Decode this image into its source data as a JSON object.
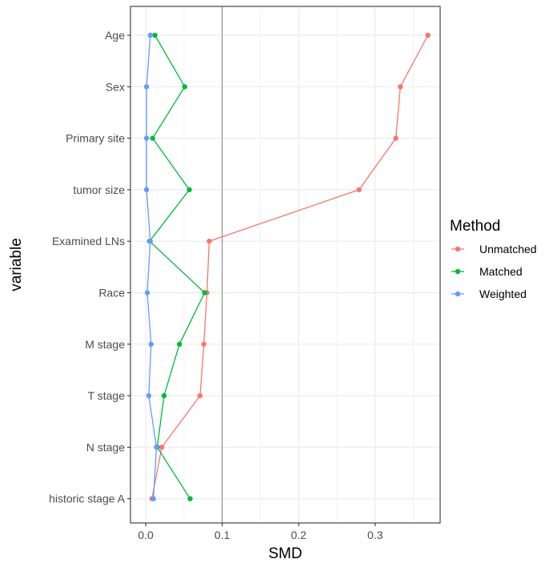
{
  "chart_data": {
    "type": "line",
    "xlabel": "SMD",
    "ylabel": "variable",
    "xlim": [
      -0.02,
      0.385
    ],
    "x_ticks": [
      0.0,
      0.1,
      0.2,
      0.3
    ],
    "x_tick_labels": [
      "0.0",
      "0.1",
      "0.2",
      "0.3"
    ],
    "reference_line_x": 0.1,
    "grid": true,
    "categories": [
      "Age",
      "Sex",
      "Primary site",
      "tumor size",
      "Examined LNs",
      "Race",
      "M stage",
      "T stage",
      "N stage",
      "historic stage A"
    ],
    "legend": {
      "title": "Method",
      "placement": "right"
    },
    "series": [
      {
        "name": "Unmatched",
        "color": "#F8766D",
        "values": [
          0.369,
          0.333,
          0.327,
          0.279,
          0.083,
          0.08,
          0.076,
          0.071,
          0.021,
          0.008
        ]
      },
      {
        "name": "Matched",
        "color": "#00BA38",
        "values": [
          0.012,
          0.051,
          0.009,
          0.057,
          0.005,
          0.077,
          0.044,
          0.024,
          0.015,
          0.058
        ]
      },
      {
        "name": "Weighted",
        "color": "#619CFF",
        "values": [
          0.006,
          0.001,
          0.001,
          0.001,
          0.006,
          0.002,
          0.007,
          0.004,
          0.014,
          0.01
        ]
      }
    ]
  }
}
